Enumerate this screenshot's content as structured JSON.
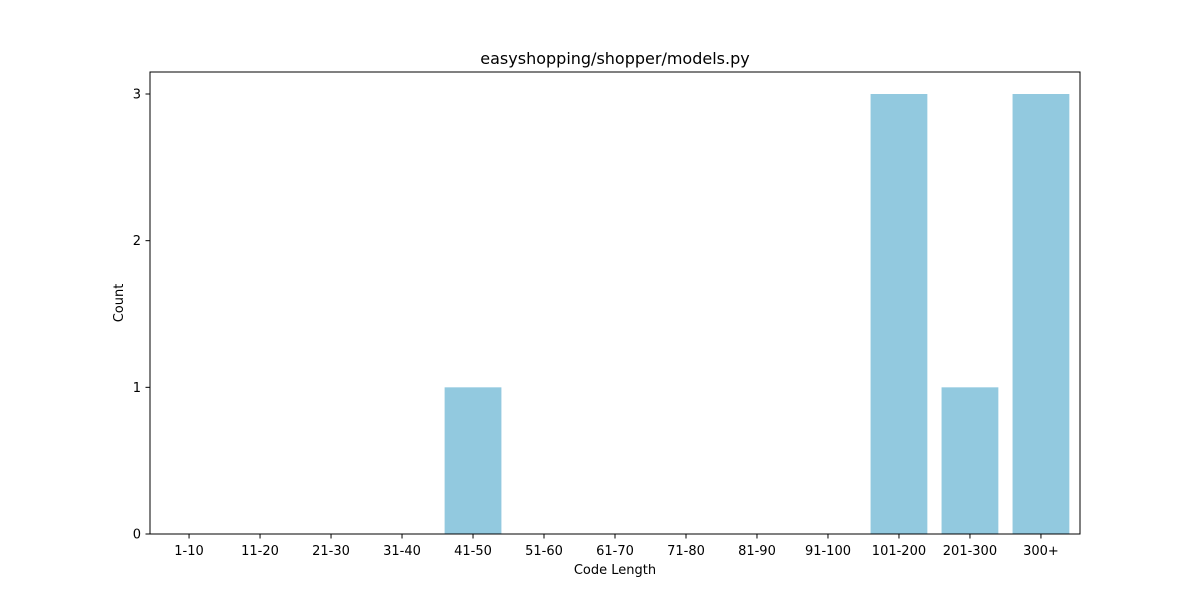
{
  "chart_data": {
    "type": "bar",
    "title": "easyshopping/shopper/models.py",
    "xlabel": "Code Length",
    "ylabel": "Count",
    "categories": [
      "1-10",
      "11-20",
      "21-30",
      "31-40",
      "41-50",
      "51-60",
      "61-70",
      "71-80",
      "81-90",
      "91-100",
      "101-200",
      "201-300",
      "300+"
    ],
    "values": [
      0,
      0,
      0,
      0,
      1,
      0,
      0,
      0,
      0,
      0,
      3,
      1,
      3
    ],
    "ylim": [
      0,
      3.15
    ],
    "yticks": [
      0,
      1,
      2,
      3
    ],
    "bar_color": "#92c9df",
    "grid": false,
    "legend": "none"
  }
}
